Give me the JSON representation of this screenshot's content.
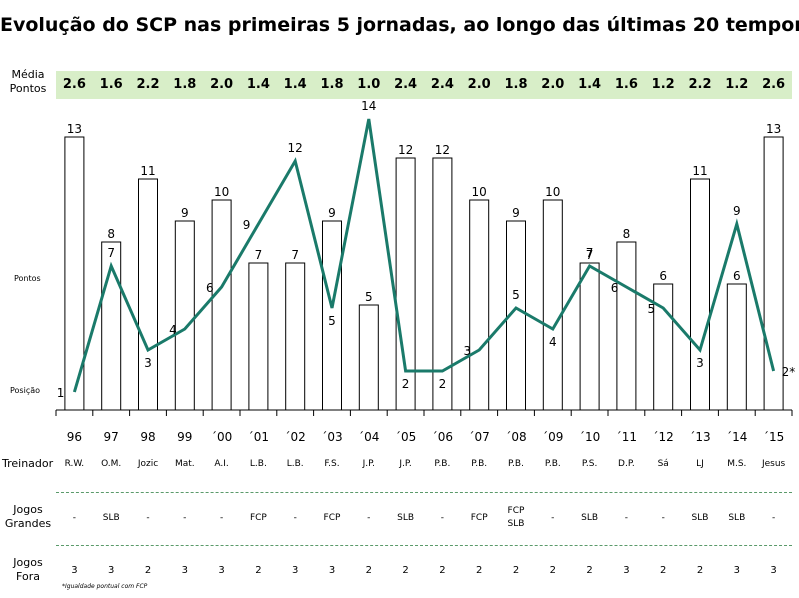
{
  "title": "Evolução do SCP nas primeiras 5 jornadas, ao longo das últimas 20 temporadas",
  "rows": {
    "media_label": "Média\nPontos",
    "pontos_label": "Pontos",
    "posicao_label": "Posição",
    "treinador_label": "Treinador",
    "jogos_grandes_label": "Jogos\nGrandes",
    "jogos_fora_label": "Jogos\nFora"
  },
  "footnote": "*Igualdade pontual com FCP",
  "colors": {
    "line": "#1a7a6a",
    "bar_fill": "#ffffff",
    "bar_stroke": "#000000",
    "media_band": "#d8eec8",
    "divider": "#5a9a6a"
  },
  "chart_data": {
    "type": "bar",
    "categories": [
      "96",
      "97",
      "98",
      "99",
      "´00",
      "´01",
      "´02",
      "´03",
      "´04",
      "´05",
      "´06",
      "´07",
      "´08",
      "´09",
      "´10",
      "´11",
      "´12",
      "´13",
      "´14",
      "´15"
    ],
    "series": [
      {
        "name": "Pontos",
        "type": "bar",
        "values": [
          13,
          8,
          11,
          9,
          10,
          7,
          7,
          9,
          5,
          12,
          12,
          10,
          9,
          10,
          7,
          8,
          6,
          11,
          6,
          13
        ]
      },
      {
        "name": "Posição",
        "type": "line",
        "values": [
          1,
          7,
          3,
          4,
          6,
          9,
          12,
          5,
          14,
          2,
          2,
          3,
          5,
          4,
          7,
          6,
          5,
          3,
          9,
          2
        ],
        "labels": [
          "1",
          "7",
          "3",
          "4",
          "6",
          "9",
          "12",
          "5",
          "14",
          "2",
          "2",
          "3",
          "5",
          "4",
          "7",
          "6",
          "5",
          "3",
          "9",
          "2*"
        ]
      }
    ],
    "media_pontos": [
      "2.6",
      "1.6",
      "2.2",
      "1.8",
      "2.0",
      "1.4",
      "1.4",
      "1.8",
      "1.0",
      "2.4",
      "2.4",
      "2.0",
      "1.8",
      "2.0",
      "1.4",
      "1.6",
      "1.2",
      "2.2",
      "1.2",
      "2.6"
    ],
    "treinador": [
      "R.W.",
      "O.M.",
      "Jozic",
      "Mat.",
      "A.I.",
      "L.B.",
      "L.B.",
      "F.S.",
      "J.P.",
      "J.P.",
      "P.B.",
      "P.B.",
      "P.B.",
      "P.B.",
      "P.S.",
      "D.P.",
      "Sá",
      "LJ",
      "M.S.",
      "Jesus"
    ],
    "jogos_grandes": [
      [
        "-"
      ],
      [
        "SLB"
      ],
      [
        "-"
      ],
      [
        "-"
      ],
      [
        "-"
      ],
      [
        "FCP"
      ],
      [
        "-"
      ],
      [
        "FCP"
      ],
      [
        "-"
      ],
      [
        "SLB"
      ],
      [
        "-"
      ],
      [
        "FCP"
      ],
      [
        "FCP",
        "SLB"
      ],
      [
        "-"
      ],
      [
        "SLB"
      ],
      [
        "-"
      ],
      [
        "-"
      ],
      [
        "SLB"
      ],
      [
        "SLB"
      ],
      [
        "-"
      ]
    ],
    "jogos_fora": [
      "3",
      "3",
      "2",
      "3",
      "3",
      "2",
      "3",
      "3",
      "2",
      "2",
      "2",
      "2",
      "2",
      "2",
      "2",
      "3",
      "2",
      "2",
      "3",
      "3"
    ],
    "grid": false
  }
}
